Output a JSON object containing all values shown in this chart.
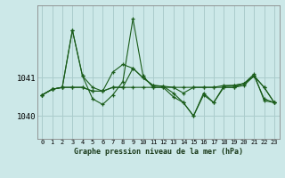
{
  "title": "Graphe pression niveau de la mer (hPa)",
  "bg_color": "#cce8e8",
  "grid_color": "#aacccc",
  "line_color": "#1a5c1a",
  "x_labels": [
    "0",
    "1",
    "2",
    "3",
    "4",
    "5",
    "6",
    "7",
    "8",
    "9",
    "10",
    "11",
    "12",
    "13",
    "14",
    "15",
    "16",
    "17",
    "18",
    "19",
    "20",
    "21",
    "22",
    "23"
  ],
  "yticks": [
    1040,
    1041
  ],
  "ylim": [
    1039.4,
    1042.9
  ],
  "series": [
    [
      1040.55,
      1040.7,
      1040.75,
      1042.25,
      1041.05,
      1040.75,
      1040.65,
      1040.75,
      1040.75,
      1040.75,
      1040.75,
      1040.75,
      1040.75,
      1040.75,
      1040.75,
      1040.75,
      1040.75,
      1040.75,
      1040.75,
      1040.75,
      1040.8,
      1041.05,
      1040.75,
      1040.35
    ],
    [
      1040.55,
      1040.7,
      1040.75,
      1040.75,
      1040.75,
      1040.65,
      1040.65,
      1040.75,
      1040.75,
      1041.25,
      1041.0,
      1040.8,
      1040.78,
      1040.75,
      1040.6,
      1040.75,
      1040.75,
      1040.75,
      1040.8,
      1040.8,
      1040.85,
      1041.05,
      1040.75,
      1040.35
    ],
    [
      1040.55,
      1040.7,
      1040.75,
      1042.25,
      1041.05,
      1040.45,
      1040.3,
      1040.55,
      1040.9,
      1042.55,
      1041.05,
      1040.75,
      1040.75,
      1040.5,
      1040.35,
      1040.0,
      1040.55,
      1040.35,
      1040.75,
      1040.75,
      1040.85,
      1041.1,
      1040.4,
      1040.35
    ],
    [
      1040.55,
      1040.7,
      1040.75,
      1040.75,
      1040.75,
      1040.65,
      1040.65,
      1041.15,
      1041.35,
      1041.25,
      1041.0,
      1040.8,
      1040.78,
      1040.6,
      1040.35,
      1040.0,
      1040.6,
      1040.35,
      1040.78,
      1040.8,
      1040.85,
      1041.05,
      1040.45,
      1040.35
    ]
  ]
}
